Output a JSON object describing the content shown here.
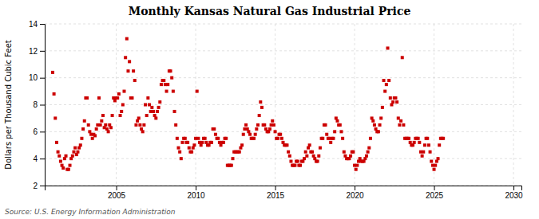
{
  "chart_data": {
    "type": "scatter",
    "title": "Monthly Kansas Natural Gas Industrial Price",
    "ylabel": "Dollars per Thousand Cubic Feet",
    "annotations": [
      "Source: U.S. Energy Information Administration"
    ],
    "color": "#cc0000",
    "marker": "square",
    "grid": true,
    "xlim": [
      2000.5,
      2030.5
    ],
    "xticks": [
      2005,
      2010,
      2015,
      2020,
      2025,
      2030
    ],
    "ylim": [
      2,
      14
    ],
    "yticks": [
      2,
      4,
      6,
      8,
      10,
      12,
      14
    ],
    "x": [
      2001,
      2001.0833333333333,
      2001.1666666666667,
      2001.25,
      2001.3333333333333,
      2001.4166666666667,
      2001.5,
      2001.5833333333333,
      2001.6666666666667,
      2001.75,
      2001.8333333333333,
      2001.9166666666667,
      2002,
      2002.0833333333333,
      2002.1666666666667,
      2002.25,
      2002.3333333333333,
      2002.4166666666667,
      2002.5,
      2002.5833333333333,
      2002.6666666666667,
      2002.75,
      2002.8333333333333,
      2002.9166666666667,
      2003,
      2003.0833333333333,
      2003.1666666666667,
      2003.25,
      2003.3333333333333,
      2003.4166666666667,
      2003.5,
      2003.5833333333333,
      2003.6666666666667,
      2003.75,
      2003.8333333333333,
      2003.9166666666667,
      2004,
      2004.0833333333333,
      2004.1666666666667,
      2004.25,
      2004.3333333333333,
      2004.4166666666667,
      2004.5,
      2004.5833333333333,
      2004.6666666666667,
      2004.75,
      2004.8333333333333,
      2004.9166666666667,
      2005,
      2005.0833333333333,
      2005.1666666666667,
      2005.25,
      2005.3333333333333,
      2005.4166666666667,
      2005.5,
      2005.5833333333333,
      2005.6666666666667,
      2005.75,
      2005.8333333333333,
      2005.9166666666667,
      2006,
      2006.0833333333333,
      2006.1666666666667,
      2006.25,
      2006.3333333333333,
      2006.4166666666667,
      2006.5,
      2006.5833333333333,
      2006.6666666666667,
      2006.75,
      2006.8333333333333,
      2006.9166666666667,
      2007,
      2007.0833333333333,
      2007.1666666666667,
      2007.25,
      2007.3333333333333,
      2007.4166666666667,
      2007.5,
      2007.5833333333333,
      2007.6666666666667,
      2007.75,
      2007.8333333333333,
      2007.9166666666667,
      2008,
      2008.0833333333333,
      2008.1666666666667,
      2008.25,
      2008.3333333333333,
      2008.4166666666667,
      2008.5,
      2008.5833333333333,
      2008.6666666666667,
      2008.75,
      2008.8333333333333,
      2008.9166666666667,
      2009,
      2009.0833333333333,
      2009.1666666666667,
      2009.25,
      2009.3333333333333,
      2009.4166666666667,
      2009.5,
      2009.5833333333333,
      2009.6666666666667,
      2009.75,
      2009.8333333333333,
      2009.9166666666667,
      2010,
      2010.0833333333333,
      2010.1666666666667,
      2010.25,
      2010.3333333333333,
      2010.4166666666667,
      2010.5,
      2010.5833333333333,
      2010.6666666666667,
      2010.75,
      2010.8333333333333,
      2010.9166666666667,
      2011,
      2011.0833333333333,
      2011.1666666666667,
      2011.25,
      2011.3333333333333,
      2011.4166666666667,
      2011.5,
      2011.5833333333333,
      2011.6666666666667,
      2011.75,
      2011.8333333333333,
      2011.9166666666667,
      2012,
      2012.0833333333333,
      2012.1666666666667,
      2012.25,
      2012.3333333333333,
      2012.4166666666667,
      2012.5,
      2012.5833333333333,
      2012.6666666666667,
      2012.75,
      2012.8333333333333,
      2012.9166666666667,
      2013,
      2013.0833333333333,
      2013.1666666666667,
      2013.25,
      2013.3333333333333,
      2013.4166666666667,
      2013.5,
      2013.5833333333333,
      2013.6666666666667,
      2013.75,
      2013.8333333333333,
      2013.9166666666667,
      2014,
      2014.0833333333333,
      2014.1666666666667,
      2014.25,
      2014.3333333333333,
      2014.4166666666667,
      2014.5,
      2014.5833333333333,
      2014.6666666666667,
      2014.75,
      2014.8333333333333,
      2014.9166666666667,
      2015,
      2015.0833333333333,
      2015.1666666666667,
      2015.25,
      2015.3333333333333,
      2015.4166666666667,
      2015.5,
      2015.5833333333333,
      2015.6666666666667,
      2015.75,
      2015.8333333333333,
      2015.9166666666667,
      2016,
      2016.0833333333333,
      2016.1666666666667,
      2016.25,
      2016.3333333333333,
      2016.4166666666667,
      2016.5,
      2016.5833333333333,
      2016.6666666666667,
      2016.75,
      2016.8333333333333,
      2016.9166666666667,
      2017,
      2017.0833333333333,
      2017.1666666666667,
      2017.25,
      2017.3333333333333,
      2017.4166666666667,
      2017.5,
      2017.5833333333333,
      2017.6666666666667,
      2017.75,
      2017.8333333333333,
      2017.9166666666667,
      2018,
      2018.0833333333333,
      2018.1666666666667,
      2018.25,
      2018.3333333333333,
      2018.4166666666667,
      2018.5,
      2018.5833333333333,
      2018.6666666666667,
      2018.75,
      2018.8333333333333,
      2018.9166666666667,
      2019,
      2019.0833333333333,
      2019.1666666666667,
      2019.25,
      2019.3333333333333,
      2019.4166666666667,
      2019.5,
      2019.5833333333333,
      2019.6666666666667,
      2019.75,
      2019.8333333333333,
      2019.9166666666667,
      2020,
      2020.0833333333333,
      2020.1666666666667,
      2020.25,
      2020.3333333333333,
      2020.4166666666667,
      2020.5,
      2020.5833333333333,
      2020.6666666666667,
      2020.75,
      2020.8333333333333,
      2020.9166666666667,
      2021,
      2021.0833333333333,
      2021.1666666666667,
      2021.25,
      2021.3333333333333,
      2021.4166666666667,
      2021.5,
      2021.5833333333333,
      2021.6666666666667,
      2021.75,
      2021.8333333333333,
      2021.9166666666667,
      2022,
      2022.0833333333333,
      2022.1666666666667,
      2022.25,
      2022.3333333333333,
      2022.4166666666667,
      2022.5,
      2022.5833333333333,
      2022.6666666666667,
      2022.75,
      2022.8333333333333,
      2022.9166666666667,
      2023,
      2023.0833333333333,
      2023.1666666666667,
      2023.25,
      2023.3333333333333,
      2023.4166666666667,
      2023.5,
      2023.5833333333333,
      2023.6666666666667,
      2023.75,
      2023.8333333333333,
      2023.9166666666667,
      2024,
      2024.0833333333333,
      2024.1666666666667,
      2024.25,
      2024.3333333333333,
      2024.4166666666667,
      2024.5,
      2024.5833333333333,
      2024.6666666666667,
      2024.75,
      2024.8333333333333,
      2024.9166666666667,
      2025,
      2025.0833333333333,
      2025.1666666666667,
      2025.25,
      2025.3333333333333,
      2025.4166666666667,
      2025.5,
      2025.5833333333333
    ],
    "values": [
      10.4,
      8.8,
      7.0,
      5.2,
      4.5,
      4.2,
      3.8,
      3.5,
      3.3,
      4.0,
      4.2,
      3.2,
      3.2,
      3.5,
      4.0,
      4.2,
      4.5,
      4.8,
      4.3,
      4.5,
      4.8,
      5.0,
      5.5,
      6.2,
      6.8,
      8.5,
      8.5,
      6.5,
      6.0,
      5.8,
      5.5,
      5.8,
      5.7,
      6.2,
      6.5,
      8.5,
      6.5,
      6.8,
      7.2,
      6.3,
      6.5,
      6.2,
      6.0,
      6.5,
      6.3,
      7.2,
      8.5,
      8.3,
      8.5,
      8.5,
      8.8,
      7.2,
      7.5,
      8.0,
      9.0,
      11.5,
      12.9,
      10.5,
      11.2,
      8.5,
      8.5,
      10.5,
      9.8,
      6.5,
      6.8,
      7.0,
      6.5,
      6.2,
      6.0,
      6.5,
      8.0,
      7.2,
      8.5,
      8.0,
      7.5,
      7.8,
      7.5,
      7.2,
      7.0,
      7.5,
      7.8,
      8.2,
      9.5,
      9.8,
      9.8,
      9.5,
      9.0,
      9.5,
      10.5,
      10.5,
      10.0,
      9.0,
      7.5,
      6.5,
      5.5,
      4.8,
      4.5,
      4.0,
      5.2,
      5.5,
      5.5,
      5.2,
      5.2,
      4.8,
      4.5,
      4.5,
      4.8,
      5.0,
      5.5,
      9.0,
      5.5,
      5.2,
      5.0,
      5.2,
      5.5,
      5.5,
      5.2,
      5.0,
      5.0,
      5.2,
      5.2,
      6.2,
      6.2,
      5.8,
      5.5,
      5.5,
      5.2,
      5.0,
      5.2,
      5.2,
      5.5,
      5.5,
      3.5,
      3.5,
      3.5,
      3.5,
      4.0,
      4.5,
      4.5,
      4.5,
      4.5,
      4.5,
      4.8,
      5.0,
      5.8,
      6.2,
      6.5,
      6.2,
      6.0,
      5.8,
      5.5,
      5.5,
      5.5,
      5.8,
      6.2,
      6.5,
      7.2,
      8.2,
      7.8,
      6.5,
      6.5,
      6.2,
      6.0,
      6.0,
      6.2,
      6.5,
      6.8,
      6.5,
      6.0,
      5.5,
      5.5,
      5.8,
      5.8,
      5.5,
      5.2,
      5.0,
      5.0,
      5.0,
      4.5,
      4.2,
      3.8,
      3.5,
      3.5,
      3.5,
      3.8,
      3.8,
      3.5,
      3.5,
      3.8,
      3.8,
      4.0,
      4.5,
      4.2,
      4.8,
      5.0,
      4.5,
      4.5,
      4.2,
      4.0,
      3.8,
      3.8,
      4.2,
      4.8,
      5.5,
      5.5,
      6.5,
      6.5,
      5.8,
      5.5,
      5.5,
      5.2,
      5.5,
      5.5,
      6.0,
      7.0,
      6.8,
      6.5,
      6.5,
      6.0,
      5.5,
      4.5,
      4.2,
      4.0,
      4.0,
      4.0,
      4.2,
      4.5,
      4.5,
      3.5,
      3.2,
      3.5,
      3.8,
      4.0,
      3.8,
      3.8,
      3.8,
      4.0,
      4.2,
      4.5,
      4.8,
      5.5,
      7.0,
      6.8,
      6.5,
      6.2,
      6.0,
      6.0,
      6.5,
      7.0,
      7.8,
      9.8,
      9.0,
      9.5,
      12.2,
      9.8,
      8.5,
      8.0,
      8.2,
      8.5,
      8.5,
      8.2,
      7.0,
      6.5,
      6.8,
      11.5,
      6.5,
      5.5,
      5.5,
      5.5,
      5.5,
      5.2,
      5.0,
      5.0,
      5.2,
      5.5,
      5.5,
      5.5,
      5.2,
      4.5,
      4.2,
      4.5,
      5.0,
      5.5,
      5.5,
      5.0,
      4.5,
      3.8,
      3.5,
      3.2,
      3.5,
      3.8,
      4.0,
      5.0,
      5.5,
      5.5,
      5.5
    ]
  }
}
